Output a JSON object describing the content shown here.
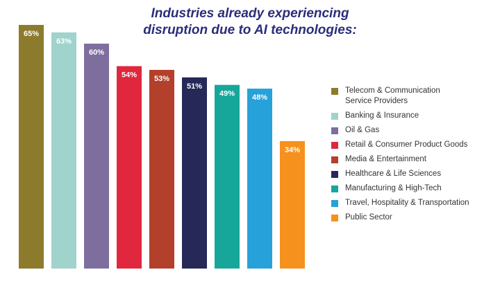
{
  "chart_data": {
    "type": "bar",
    "title": [
      "Industries already experiencing",
      "disruption due to AI technologies:"
    ],
    "categories": [
      "Telecom & Communication Service Providers",
      "Banking & Insurance",
      "Oil & Gas",
      "Retail & Consumer Product Goods",
      "Media & Entertainment",
      "Healthcare & Life Sciences",
      "Manufacturing & High-Tech",
      "Travel, Hospitality & Transportation",
      "Public Sector"
    ],
    "legend_labels": [
      [
        "Telecom & Communication",
        "Service Providers"
      ],
      [
        "Banking & Insurance"
      ],
      [
        "Oil & Gas"
      ],
      [
        "Retail & Consumer Product Goods"
      ],
      [
        "Media & Entertainment"
      ],
      [
        "Healthcare & Life Sciences"
      ],
      [
        "Manufacturing & High-Tech"
      ],
      [
        "Travel, Hospitality & Transportation"
      ],
      [
        "Public Sector"
      ]
    ],
    "values": [
      65,
      63,
      60,
      54,
      53,
      51,
      49,
      48,
      34
    ],
    "data_labels": [
      "65%",
      "63%",
      "60%",
      "54%",
      "53%",
      "51%",
      "49%",
      "48%",
      "34%"
    ],
    "colors": [
      "#8c7b2d",
      "#9fd3cc",
      "#7e6e9e",
      "#e0273d",
      "#b3402b",
      "#262858",
      "#16a79a",
      "#27a1d9",
      "#f6911e"
    ],
    "ylim": [
      0,
      65
    ],
    "legend_position": "right",
    "grid": false,
    "axes_visible": false
  }
}
